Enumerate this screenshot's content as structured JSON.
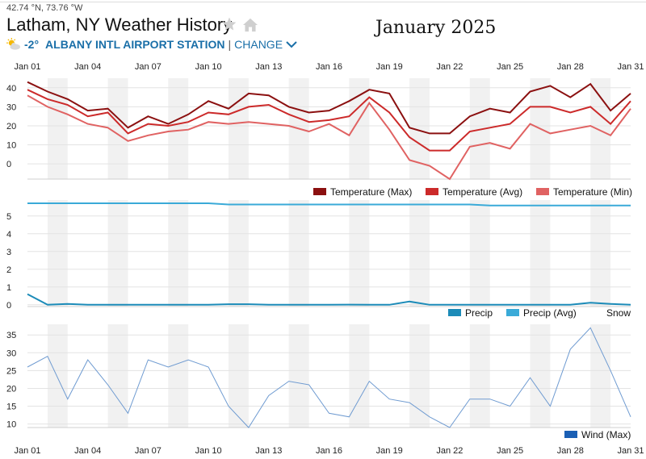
{
  "header": {
    "coordinates": "42.74 °N, 73.76 °W",
    "title": "Latham, NY Weather History",
    "month": "January 2025",
    "current_temp": "-2°",
    "station": "ALBANY INTL AIRPORT STATION",
    "separator": "|",
    "change_label": "CHANGE"
  },
  "colors": {
    "accent": "#1a6fa8",
    "temp_max": "#8b1010",
    "temp_avg": "#cc2a2a",
    "temp_min": "#e06262",
    "precip": "#1c8bb8",
    "precip_avg": "#3aaad8",
    "wind": "#6f9bd1",
    "wind_legend": "#1a5fb4"
  },
  "chart_data": [
    {
      "type": "line",
      "x": [
        "Jan 01",
        "Jan 02",
        "Jan 03",
        "Jan 04",
        "Jan 05",
        "Jan 06",
        "Jan 07",
        "Jan 08",
        "Jan 09",
        "Jan 10",
        "Jan 11",
        "Jan 12",
        "Jan 13",
        "Jan 14",
        "Jan 15",
        "Jan 16",
        "Jan 17",
        "Jan 18",
        "Jan 19",
        "Jan 20",
        "Jan 21",
        "Jan 22",
        "Jan 23",
        "Jan 24",
        "Jan 25",
        "Jan 26",
        "Jan 27",
        "Jan 28",
        "Jan 29",
        "Jan 30",
        "Jan 31"
      ],
      "xticks": [
        "Jan 01",
        "Jan 04",
        "Jan 07",
        "Jan 10",
        "Jan 13",
        "Jan 16",
        "Jan 19",
        "Jan 22",
        "Jan 25",
        "Jan 28",
        "Jan 31"
      ],
      "yticks": [
        0,
        10,
        20,
        30,
        40
      ],
      "ylim": [
        -8,
        45
      ],
      "series": [
        {
          "name": "Temperature (Max)",
          "values": [
            43,
            38,
            34,
            28,
            29,
            19,
            25,
            21,
            26,
            33,
            29,
            37,
            36,
            30,
            27,
            28,
            33,
            39,
            37,
            19,
            16,
            16,
            25,
            29,
            27,
            38,
            41,
            35,
            42,
            28,
            37
          ]
        },
        {
          "name": "Temperature (Avg)",
          "values": [
            39,
            34,
            31,
            25,
            27,
            16,
            21,
            20,
            22,
            27,
            26,
            30,
            31,
            26,
            22,
            23,
            25,
            35,
            27,
            14,
            7,
            7,
            17,
            19,
            21,
            30,
            30,
            27,
            30,
            21,
            33
          ]
        },
        {
          "name": "Temperature (Min)",
          "values": [
            36,
            30,
            26,
            21,
            19,
            12,
            15,
            17,
            18,
            22,
            21,
            22,
            21,
            20,
            17,
            21,
            15,
            32,
            18,
            2,
            -1,
            -8,
            9,
            11,
            8,
            21,
            16,
            18,
            20,
            15,
            29
          ]
        }
      ],
      "legend": "bottom-right"
    },
    {
      "type": "line",
      "x": [
        "Jan 01",
        "Jan 02",
        "Jan 03",
        "Jan 04",
        "Jan 05",
        "Jan 06",
        "Jan 07",
        "Jan 08",
        "Jan 09",
        "Jan 10",
        "Jan 11",
        "Jan 12",
        "Jan 13",
        "Jan 14",
        "Jan 15",
        "Jan 16",
        "Jan 17",
        "Jan 18",
        "Jan 19",
        "Jan 20",
        "Jan 21",
        "Jan 22",
        "Jan 23",
        "Jan 24",
        "Jan 25",
        "Jan 26",
        "Jan 27",
        "Jan 28",
        "Jan 29",
        "Jan 30",
        "Jan 31"
      ],
      "yticks": [
        0,
        1,
        2,
        3,
        4,
        5
      ],
      "ylim": [
        -0.1,
        5.9
      ],
      "series": [
        {
          "name": "Precip",
          "values": [
            0.6,
            0.0,
            0.05,
            0.0,
            0.0,
            0.0,
            0.0,
            0.0,
            0.0,
            0.0,
            0.03,
            0.03,
            0.0,
            0.0,
            0.0,
            0.0,
            0.01,
            0.0,
            0.0,
            0.18,
            0.0,
            0.0,
            0.0,
            0.0,
            0.0,
            0.0,
            0.0,
            0.0,
            0.12,
            0.05,
            0.0
          ]
        },
        {
          "name": "Precip (Avg)",
          "values": [
            5.72,
            5.72,
            5.72,
            5.72,
            5.72,
            5.72,
            5.72,
            5.72,
            5.72,
            5.72,
            5.65,
            5.65,
            5.65,
            5.65,
            5.65,
            5.65,
            5.65,
            5.65,
            5.65,
            5.65,
            5.65,
            5.65,
            5.65,
            5.59,
            5.59,
            5.59,
            5.59,
            5.59,
            5.59,
            5.59,
            5.59
          ]
        }
      ],
      "legend_entries": [
        "Precip",
        "Precip (Avg)",
        "Snow"
      ],
      "legend": "bottom-right"
    },
    {
      "type": "line",
      "x": [
        "Jan 01",
        "Jan 02",
        "Jan 03",
        "Jan 04",
        "Jan 05",
        "Jan 06",
        "Jan 07",
        "Jan 08",
        "Jan 09",
        "Jan 10",
        "Jan 11",
        "Jan 12",
        "Jan 13",
        "Jan 14",
        "Jan 15",
        "Jan 16",
        "Jan 17",
        "Jan 18",
        "Jan 19",
        "Jan 20",
        "Jan 21",
        "Jan 22",
        "Jan 23",
        "Jan 24",
        "Jan 25",
        "Jan 26",
        "Jan 27",
        "Jan 28",
        "Jan 29",
        "Jan 30",
        "Jan 31"
      ],
      "xticks": [
        "Jan 01",
        "Jan 04",
        "Jan 07",
        "Jan 10",
        "Jan 13",
        "Jan 16",
        "Jan 19",
        "Jan 22",
        "Jan 25",
        "Jan 28",
        "Jan 31"
      ],
      "yticks": [
        10,
        15,
        20,
        25,
        30,
        35
      ],
      "ylim": [
        9,
        38
      ],
      "series": [
        {
          "name": "Wind (Max)",
          "values": [
            26,
            29,
            17,
            28,
            21,
            13,
            28,
            26,
            28,
            26,
            15,
            9,
            18,
            22,
            21,
            13,
            12,
            22,
            17,
            16,
            12,
            9,
            17,
            17,
            15,
            23,
            15,
            31,
            37,
            25,
            12
          ]
        }
      ],
      "legend": "bottom-right"
    }
  ]
}
